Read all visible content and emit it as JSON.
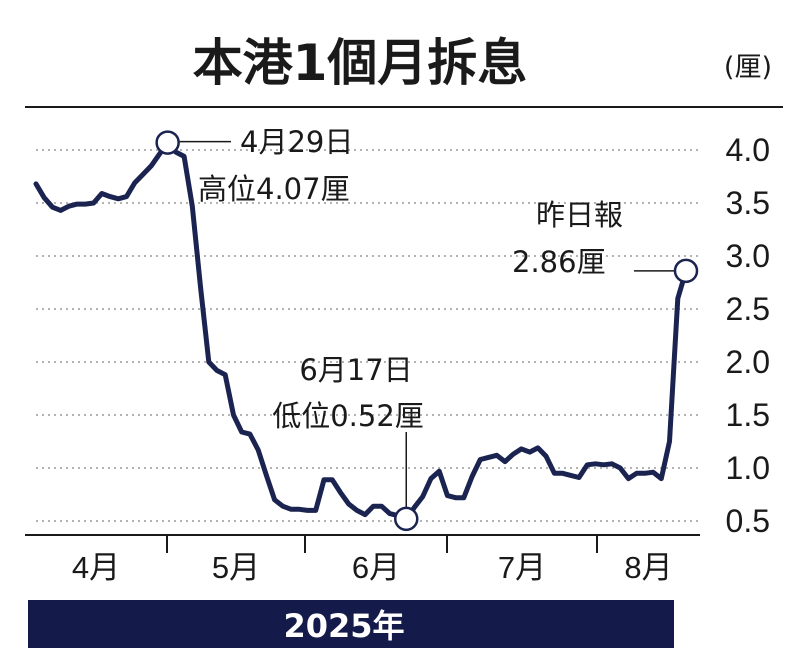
{
  "chart_data": {
    "type": "line",
    "title": "本港1個月拆息",
    "unit": "(厘)",
    "year_label": "2025年",
    "y_ticks": [
      "4.0",
      "3.5",
      "3.0",
      "2.5",
      "2.0",
      "1.5",
      "1.0",
      "0.5"
    ],
    "ylim": [
      0.4,
      4.15
    ],
    "grid": "horizontal-dashed",
    "x_categories": [
      "4月",
      "5月",
      "6月",
      "7月",
      "8月"
    ],
    "series": [
      {
        "color": "#1b2350",
        "points": [
          {
            "x": 0,
            "y": 3.68
          },
          {
            "x": 1,
            "y": 3.55
          },
          {
            "x": 2,
            "y": 3.46
          },
          {
            "x": 3,
            "y": 3.43
          },
          {
            "x": 4,
            "y": 3.47
          },
          {
            "x": 5,
            "y": 3.49
          },
          {
            "x": 6,
            "y": 3.49
          },
          {
            "x": 7,
            "y": 3.5
          },
          {
            "x": 8,
            "y": 3.59
          },
          {
            "x": 9,
            "y": 3.56
          },
          {
            "x": 10,
            "y": 3.54
          },
          {
            "x": 11,
            "y": 3.56
          },
          {
            "x": 12,
            "y": 3.69
          },
          {
            "x": 13,
            "y": 3.77
          },
          {
            "x": 14,
            "y": 3.85
          },
          {
            "x": 15,
            "y": 3.96
          },
          {
            "x": 16,
            "y": 4.07
          },
          {
            "x": 17,
            "y": 3.98
          },
          {
            "x": 18,
            "y": 3.94
          },
          {
            "x": 19,
            "y": 3.47
          },
          {
            "x": 20,
            "y": 2.7
          },
          {
            "x": 21,
            "y": 2.0
          },
          {
            "x": 22,
            "y": 1.92
          },
          {
            "x": 23,
            "y": 1.88
          },
          {
            "x": 24,
            "y": 1.5
          },
          {
            "x": 25,
            "y": 1.34
          },
          {
            "x": 26,
            "y": 1.32
          },
          {
            "x": 27,
            "y": 1.17
          },
          {
            "x": 28,
            "y": 0.93
          },
          {
            "x": 29,
            "y": 0.7
          },
          {
            "x": 30,
            "y": 0.64
          },
          {
            "x": 31,
            "y": 0.61
          },
          {
            "x": 32,
            "y": 0.61
          },
          {
            "x": 33,
            "y": 0.6
          },
          {
            "x": 34,
            "y": 0.6
          },
          {
            "x": 35,
            "y": 0.89
          },
          {
            "x": 36,
            "y": 0.89
          },
          {
            "x": 37,
            "y": 0.77
          },
          {
            "x": 38,
            "y": 0.66
          },
          {
            "x": 39,
            "y": 0.6
          },
          {
            "x": 40,
            "y": 0.56
          },
          {
            "x": 41,
            "y": 0.64
          },
          {
            "x": 42,
            "y": 0.64
          },
          {
            "x": 43,
            "y": 0.57
          },
          {
            "x": 44,
            "y": 0.55
          },
          {
            "x": 45,
            "y": 0.52
          },
          {
            "x": 46,
            "y": 0.63
          },
          {
            "x": 47,
            "y": 0.73
          },
          {
            "x": 48,
            "y": 0.9
          },
          {
            "x": 49,
            "y": 0.97
          },
          {
            "x": 50,
            "y": 0.74
          },
          {
            "x": 51,
            "y": 0.72
          },
          {
            "x": 52,
            "y": 0.72
          },
          {
            "x": 53,
            "y": 0.92
          },
          {
            "x": 54,
            "y": 1.08
          },
          {
            "x": 55,
            "y": 1.1
          },
          {
            "x": 56,
            "y": 1.12
          },
          {
            "x": 57,
            "y": 1.06
          },
          {
            "x": 58,
            "y": 1.13
          },
          {
            "x": 59,
            "y": 1.18
          },
          {
            "x": 60,
            "y": 1.15
          },
          {
            "x": 61,
            "y": 1.19
          },
          {
            "x": 62,
            "y": 1.11
          },
          {
            "x": 63,
            "y": 0.95
          },
          {
            "x": 64,
            "y": 0.95
          },
          {
            "x": 65,
            "y": 0.93
          },
          {
            "x": 66,
            "y": 0.91
          },
          {
            "x": 67,
            "y": 1.03
          },
          {
            "x": 68,
            "y": 1.04
          },
          {
            "x": 69,
            "y": 1.03
          },
          {
            "x": 70,
            "y": 1.04
          },
          {
            "x": 71,
            "y": 1.0
          },
          {
            "x": 72,
            "y": 0.9
          },
          {
            "x": 73,
            "y": 0.95
          },
          {
            "x": 74,
            "y": 0.95
          },
          {
            "x": 75,
            "y": 0.96
          },
          {
            "x": 76,
            "y": 0.9
          },
          {
            "x": 77,
            "y": 1.25
          },
          {
            "x": 78,
            "y": 2.6
          },
          {
            "x": 79,
            "y": 2.86
          }
        ]
      }
    ],
    "annotations": [
      {
        "point_index": 16,
        "lines": [
          "4月29日",
          "高位4.07厘"
        ]
      },
      {
        "point_index": 45,
        "lines": [
          "6月17日",
          "低位0.52厘"
        ]
      },
      {
        "point_index": 79,
        "lines": [
          "昨日報",
          "2.86厘"
        ]
      }
    ]
  }
}
